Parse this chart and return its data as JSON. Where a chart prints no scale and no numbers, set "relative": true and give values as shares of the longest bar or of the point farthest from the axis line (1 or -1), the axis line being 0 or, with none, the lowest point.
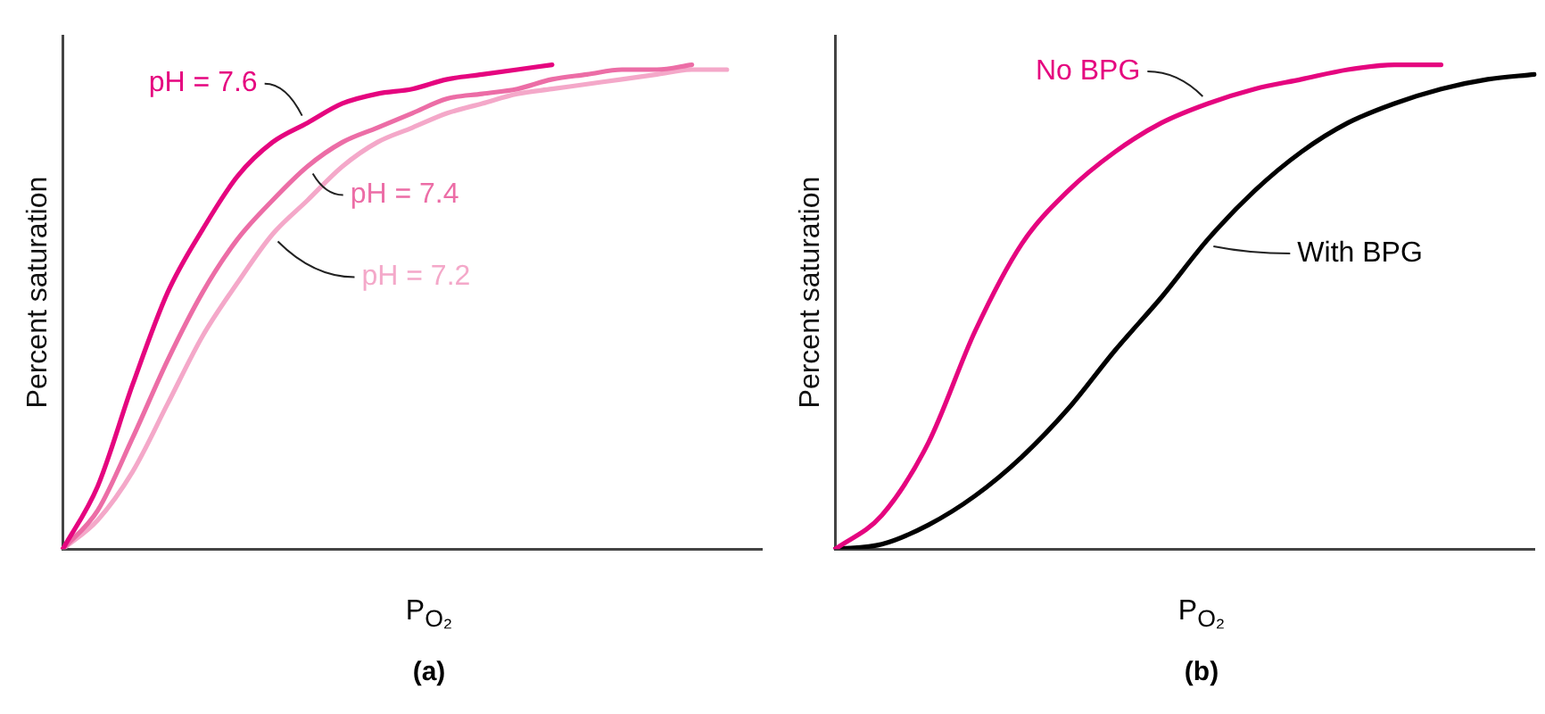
{
  "chart_data": [
    {
      "type": "line",
      "relative": true,
      "title": "(a)",
      "xlabel": "P$_{O₂}$",
      "ylabel": "Percent saturation",
      "categories": [
        null,
        null,
        null,
        null,
        null,
        null,
        null,
        null,
        null,
        null,
        null,
        null,
        null,
        null,
        null,
        null,
        null,
        null,
        null,
        null,
        null
      ],
      "marker": "none",
      "line_style": "solid",
      "grid": false,
      "legend": false,
      "series": [
        {
          "name": "pH = 7.6",
          "color": "#e5057f",
          "values": [
            0,
            0.13,
            0.34,
            0.53,
            0.66,
            0.77,
            0.84,
            0.88,
            0.92,
            0.94,
            0.95,
            0.97,
            0.98,
            0.99,
            1.0,
            null,
            null,
            null,
            null,
            null,
            null
          ]
        },
        {
          "name": "pH = 7.4",
          "color": "#ec6da6",
          "values": [
            0,
            0.08,
            0.23,
            0.39,
            0.53,
            0.64,
            0.72,
            0.79,
            0.84,
            0.87,
            0.9,
            0.93,
            0.94,
            0.95,
            0.97,
            0.98,
            0.99,
            0.99,
            1.0,
            null,
            null
          ]
        },
        {
          "name": "pH = 7.2",
          "color": "#f4a8c9",
          "values": [
            0,
            0.06,
            0.16,
            0.3,
            0.44,
            0.55,
            0.65,
            0.72,
            0.79,
            0.84,
            0.87,
            0.9,
            0.92,
            0.94,
            0.95,
            0.96,
            0.97,
            0.98,
            0.99,
            0.99,
            null
          ]
        }
      ]
    },
    {
      "type": "line",
      "relative": true,
      "title": "(b)",
      "xlabel": "P$_{O₂}$",
      "ylabel": "Percent saturation",
      "categories": [
        null,
        null,
        null,
        null,
        null,
        null,
        null,
        null,
        null,
        null,
        null,
        null,
        null,
        null,
        null,
        null
      ],
      "marker": "none",
      "line_style": "solid",
      "grid": false,
      "legend": false,
      "series": [
        {
          "name": "No BPG",
          "color": "#e5057f",
          "values": [
            0,
            0.07,
            0.22,
            0.45,
            0.63,
            0.74,
            0.82,
            0.88,
            0.92,
            0.95,
            0.97,
            0.99,
            1.0,
            1.0,
            null,
            null
          ]
        },
        {
          "name": "With BPG",
          "color": "#000000",
          "values": [
            0,
            0.01,
            0.05,
            0.11,
            0.19,
            0.29,
            0.41,
            0.52,
            0.64,
            0.74,
            0.82,
            0.88,
            0.92,
            0.95,
            0.97,
            0.98
          ]
        }
      ]
    }
  ]
}
